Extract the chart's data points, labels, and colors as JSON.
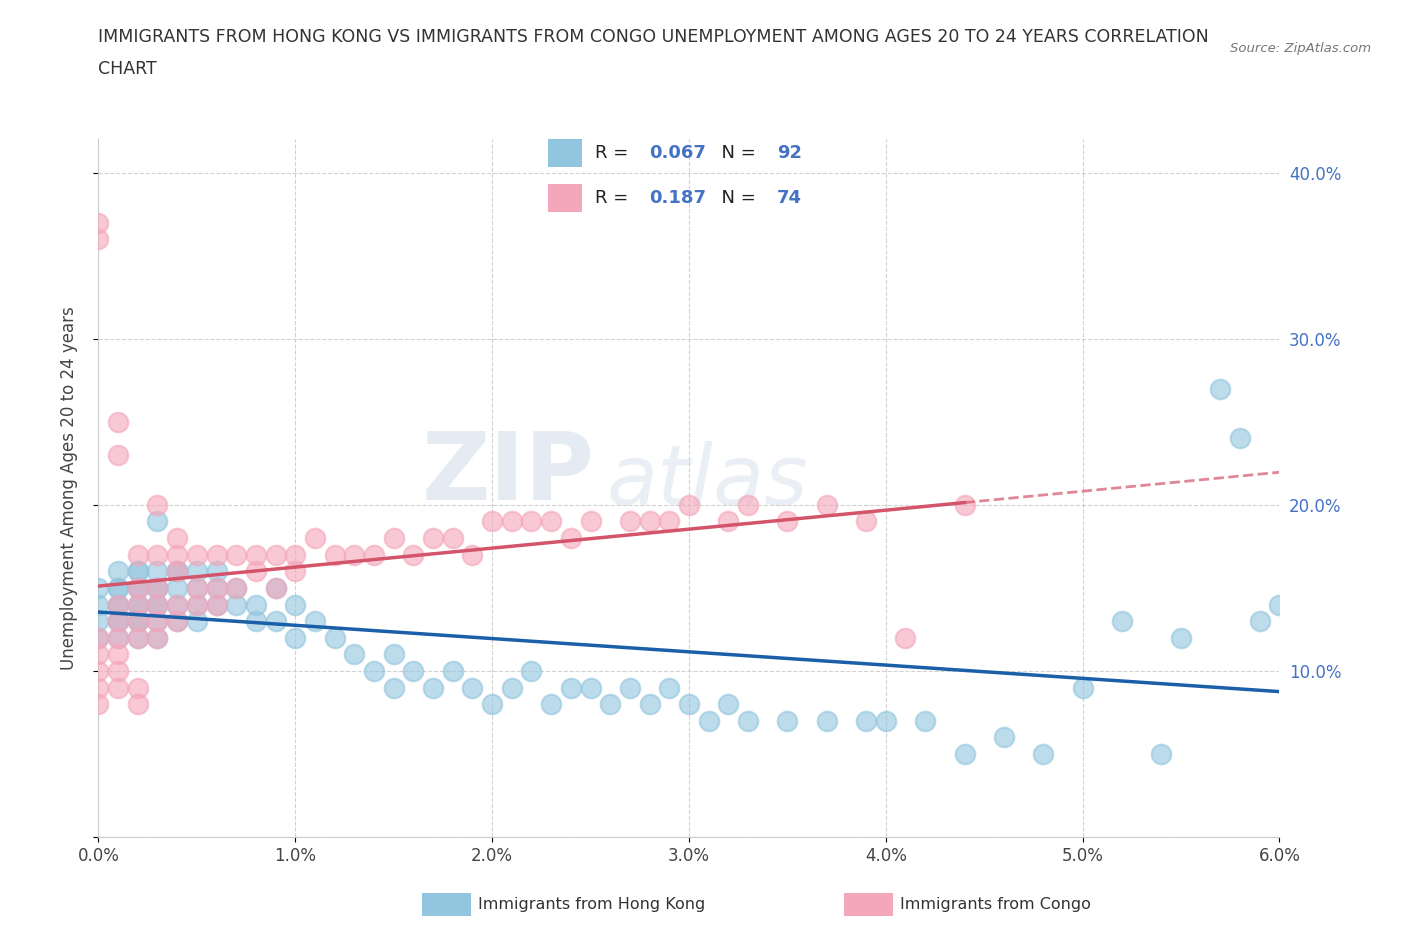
{
  "title_line1": "IMMIGRANTS FROM HONG KONG VS IMMIGRANTS FROM CONGO UNEMPLOYMENT AMONG AGES 20 TO 24 YEARS CORRELATION",
  "title_line2": "CHART",
  "source_text": "Source: ZipAtlas.com",
  "ylabel": "Unemployment Among Ages 20 to 24 years",
  "xlim": [
    0.0,
    0.06
  ],
  "ylim": [
    0.0,
    0.42
  ],
  "xticks": [
    0.0,
    0.01,
    0.02,
    0.03,
    0.04,
    0.05,
    0.06
  ],
  "yticks": [
    0.0,
    0.1,
    0.2,
    0.3,
    0.4
  ],
  "ytick_labels": [
    "",
    "10.0%",
    "20.0%",
    "30.0%",
    "40.0%"
  ],
  "xtick_labels": [
    "0.0%",
    "1.0%",
    "2.0%",
    "3.0%",
    "4.0%",
    "5.0%",
    "6.0%"
  ],
  "hk_color": "#92c5de",
  "congo_color": "#f4a6ba",
  "hk_line_color": "#1a5fa8",
  "congo_line_color": "#d4546a",
  "hk_R": 0.067,
  "hk_N": 92,
  "congo_R": 0.187,
  "congo_N": 74,
  "watermark_zip": "ZIP",
  "watermark_atlas": "atlas",
  "legend_label_hk": "Immigrants from Hong Kong",
  "legend_label_congo": "Immigrants from Congo",
  "background_color": "#ffffff",
  "grid_color": "#cccccc",
  "hk_scatter_x": [
    0.0,
    0.0,
    0.0,
    0.0,
    0.001,
    0.001,
    0.001,
    0.001,
    0.001,
    0.001,
    0.001,
    0.001,
    0.002,
    0.002,
    0.002,
    0.002,
    0.002,
    0.002,
    0.002,
    0.002,
    0.002,
    0.003,
    0.003,
    0.003,
    0.003,
    0.003,
    0.003,
    0.003,
    0.003,
    0.004,
    0.004,
    0.004,
    0.004,
    0.004,
    0.005,
    0.005,
    0.005,
    0.005,
    0.006,
    0.006,
    0.006,
    0.007,
    0.007,
    0.008,
    0.008,
    0.009,
    0.009,
    0.01,
    0.01,
    0.011,
    0.012,
    0.013,
    0.014,
    0.015,
    0.015,
    0.016,
    0.017,
    0.018,
    0.019,
    0.02,
    0.021,
    0.022,
    0.023,
    0.024,
    0.025,
    0.026,
    0.027,
    0.028,
    0.029,
    0.03,
    0.031,
    0.032,
    0.033,
    0.035,
    0.037,
    0.039,
    0.04,
    0.042,
    0.044,
    0.046,
    0.048,
    0.05,
    0.052,
    0.054,
    0.055,
    0.057,
    0.058,
    0.059,
    0.06
  ],
  "hk_scatter_y": [
    0.14,
    0.13,
    0.15,
    0.12,
    0.15,
    0.14,
    0.16,
    0.13,
    0.12,
    0.14,
    0.15,
    0.13,
    0.16,
    0.14,
    0.15,
    0.13,
    0.12,
    0.14,
    0.16,
    0.15,
    0.13,
    0.15,
    0.14,
    0.16,
    0.13,
    0.12,
    0.14,
    0.15,
    0.19,
    0.16,
    0.15,
    0.14,
    0.13,
    0.16,
    0.15,
    0.14,
    0.16,
    0.13,
    0.15,
    0.14,
    0.16,
    0.14,
    0.15,
    0.14,
    0.13,
    0.13,
    0.15,
    0.14,
    0.12,
    0.13,
    0.12,
    0.11,
    0.1,
    0.09,
    0.11,
    0.1,
    0.09,
    0.1,
    0.09,
    0.08,
    0.09,
    0.1,
    0.08,
    0.09,
    0.09,
    0.08,
    0.09,
    0.08,
    0.09,
    0.08,
    0.07,
    0.08,
    0.07,
    0.07,
    0.07,
    0.07,
    0.07,
    0.07,
    0.05,
    0.06,
    0.05,
    0.09,
    0.13,
    0.05,
    0.12,
    0.27,
    0.24,
    0.13,
    0.14
  ],
  "congo_scatter_x": [
    0.0,
    0.0,
    0.0,
    0.0,
    0.0,
    0.0,
    0.0,
    0.001,
    0.001,
    0.001,
    0.001,
    0.001,
    0.001,
    0.001,
    0.001,
    0.002,
    0.002,
    0.002,
    0.002,
    0.002,
    0.002,
    0.002,
    0.003,
    0.003,
    0.003,
    0.003,
    0.003,
    0.003,
    0.004,
    0.004,
    0.004,
    0.004,
    0.004,
    0.005,
    0.005,
    0.005,
    0.006,
    0.006,
    0.006,
    0.007,
    0.007,
    0.008,
    0.008,
    0.009,
    0.009,
    0.01,
    0.01,
    0.011,
    0.012,
    0.013,
    0.014,
    0.015,
    0.016,
    0.017,
    0.018,
    0.019,
    0.02,
    0.021,
    0.022,
    0.023,
    0.024,
    0.025,
    0.027,
    0.028,
    0.029,
    0.03,
    0.032,
    0.033,
    0.035,
    0.037,
    0.039,
    0.041,
    0.044
  ],
  "congo_scatter_y": [
    0.12,
    0.11,
    0.1,
    0.09,
    0.08,
    0.37,
    0.36,
    0.14,
    0.13,
    0.25,
    0.23,
    0.12,
    0.11,
    0.1,
    0.09,
    0.17,
    0.15,
    0.14,
    0.13,
    0.12,
    0.09,
    0.08,
    0.2,
    0.17,
    0.15,
    0.14,
    0.13,
    0.12,
    0.18,
    0.17,
    0.16,
    0.14,
    0.13,
    0.17,
    0.15,
    0.14,
    0.17,
    0.15,
    0.14,
    0.17,
    0.15,
    0.17,
    0.16,
    0.17,
    0.15,
    0.17,
    0.16,
    0.18,
    0.17,
    0.17,
    0.17,
    0.18,
    0.17,
    0.18,
    0.18,
    0.17,
    0.19,
    0.19,
    0.19,
    0.19,
    0.18,
    0.19,
    0.19,
    0.19,
    0.19,
    0.2,
    0.19,
    0.2,
    0.19,
    0.2,
    0.19,
    0.12,
    0.2
  ]
}
